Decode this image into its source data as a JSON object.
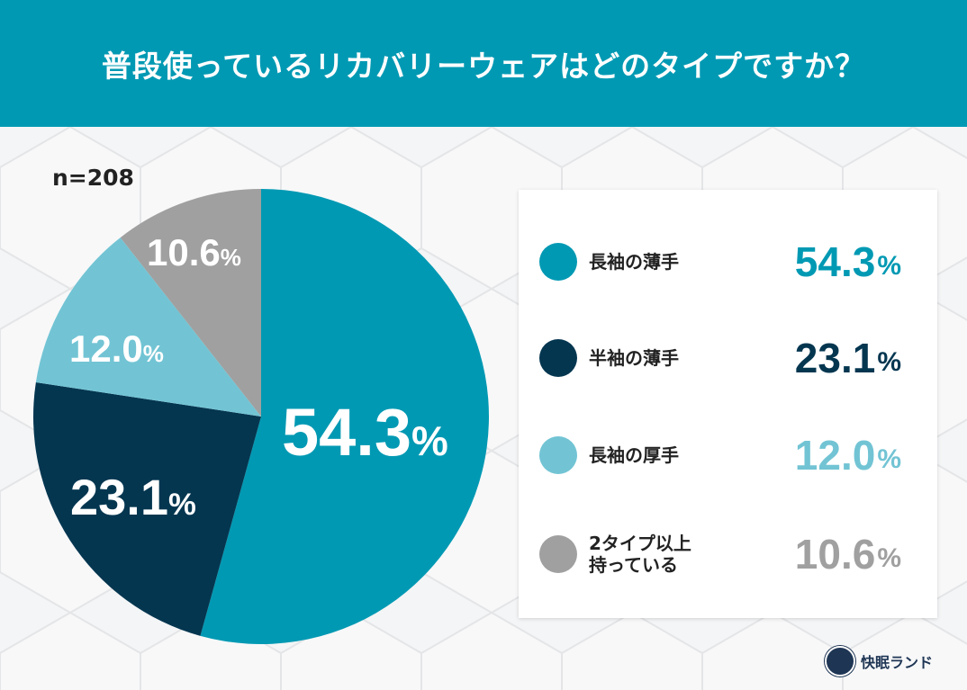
{
  "header": {
    "title": "普段使っているリカバリーウェアはどのタイプですか？"
  },
  "sample": {
    "label": "n=208"
  },
  "colors": {
    "header_bg": "#0099B3",
    "long_thin": "#0099B3",
    "short_thin": "#043650",
    "long_thick": "#72C4D4",
    "multi": "#A0A0A0"
  },
  "legend": [
    {
      "name": "長袖の薄手",
      "value": "54.3",
      "unit": "%",
      "color": "#0099B3"
    },
    {
      "name": "半袖の薄手",
      "value": "23.1",
      "unit": "%",
      "color": "#043650"
    },
    {
      "name": "長袖の厚手",
      "value": "12.0",
      "unit": "%",
      "color": "#72C4D4"
    },
    {
      "name": "2タイプ以上\n持っている",
      "value": "10.6",
      "unit": "%",
      "color": "#A0A0A0"
    }
  ],
  "pie_labels": [
    {
      "value": "54.3",
      "unit": "%"
    },
    {
      "value": "23.1",
      "unit": "%"
    },
    {
      "value": "12.0",
      "unit": "%"
    },
    {
      "value": "10.6",
      "unit": "%"
    }
  ],
  "logo": {
    "text": "快眠ランド",
    "icon": "kaimin-land-logo-icon"
  },
  "chart_data": {
    "type": "pie",
    "title": "普段使っているリカバリーウェアはどのタイプですか？",
    "subtitle": "n=208",
    "categories": [
      "長袖の薄手",
      "半袖の薄手",
      "長袖の厚手",
      "2タイプ以上持っている"
    ],
    "values": [
      54.3,
      23.1,
      12.0,
      10.6
    ],
    "colors": [
      "#0099B3",
      "#043650",
      "#72C4D4",
      "#A0A0A0"
    ],
    "start_angle": "12 o'clock, clockwise",
    "legend_position": "right"
  }
}
